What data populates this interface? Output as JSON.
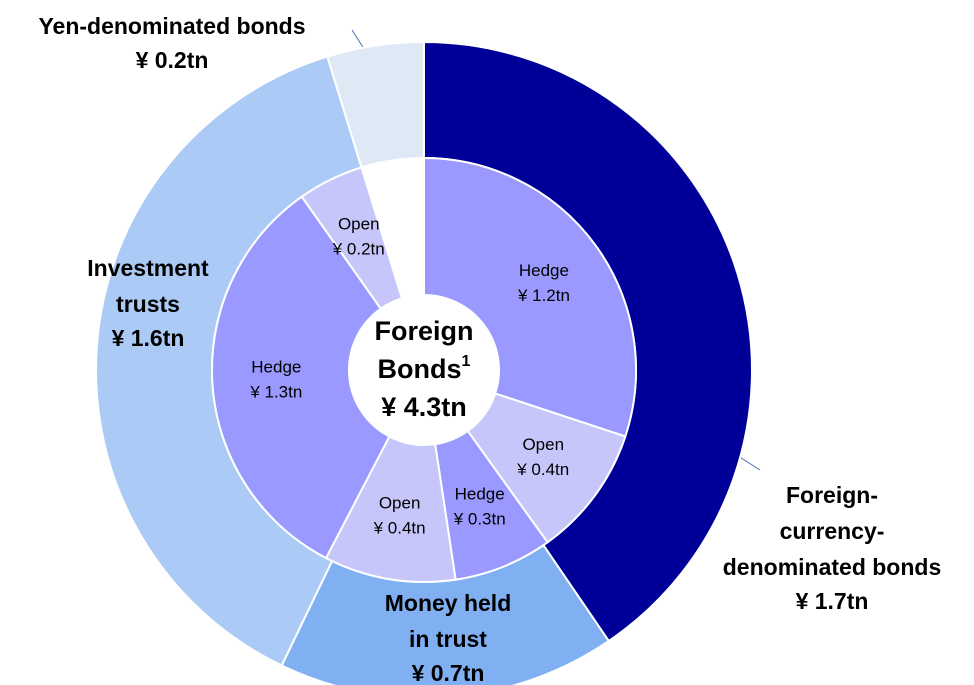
{
  "chart_data": {
    "type": "nested-donut",
    "center_title": [
      "Foreign",
      "Bonds"
    ],
    "center_footnote_mark": "1",
    "center_value_label": "¥ 4.3tn",
    "outer": [
      {
        "name": [
          "Foreign-",
          "currency-",
          "denominated bonds"
        ],
        "value": 1.7,
        "value_label": "¥ 1.7tn",
        "color": "#000099"
      },
      {
        "name": [
          "Money held",
          "in trust"
        ],
        "value": 0.7,
        "value_label": "¥ 0.7tn",
        "color": "#80b0f2"
      },
      {
        "name": [
          "Investment",
          "trusts"
        ],
        "value": 1.6,
        "value_label": "¥ 1.6tn",
        "color": "#abcbf6"
      },
      {
        "name": [
          "Yen-denominated bonds"
        ],
        "value": 0.2,
        "value_label": "¥ 0.2tn",
        "color": "#dee9f5"
      }
    ],
    "inner": [
      {
        "name": "Hedge",
        "value": 1.2,
        "value_label": "¥ 1.2tn",
        "color": "#9999ff"
      },
      {
        "name": "Open",
        "value": 0.4,
        "value_label": "¥ 0.4tn",
        "color": "#c6c6fb"
      },
      {
        "name": "Hedge",
        "value": 0.3,
        "value_label": "¥ 0.3tn",
        "color": "#9999ff"
      },
      {
        "name": "Open",
        "value": 0.4,
        "value_label": "¥ 0.4tn",
        "color": "#c6c6fb"
      },
      {
        "name": "Hedge",
        "value": 1.3,
        "value_label": "¥ 1.3tn",
        "color": "#9999ff"
      },
      {
        "name": "Open",
        "value": 0.2,
        "value_label": "¥ 0.2tn",
        "color": "#c6c6fb"
      }
    ]
  }
}
